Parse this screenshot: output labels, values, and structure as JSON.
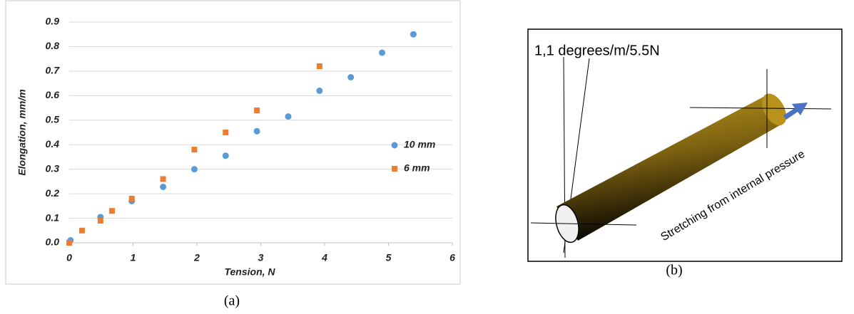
{
  "chart_data": {
    "type": "scatter",
    "x_label": "Tension, N",
    "y_label": "Elongation, mm/m",
    "xlim": [
      0,
      6
    ],
    "xticks": [
      0,
      1,
      2,
      3,
      4,
      5,
      6
    ],
    "ylim": [
      0,
      0.9
    ],
    "yticks": [
      {
        "value": 0,
        "label": "0.0"
      },
      0.1,
      0.2,
      0.3,
      0.4,
      0.5,
      0.6,
      0.7,
      0.8,
      0.9
    ],
    "grid": true,
    "legend": "right",
    "series": [
      {
        "name": "10 mm",
        "color": "#5b9bd5",
        "marker": "circle",
        "x": [
          0.02,
          0.49,
          0.98,
          1.47,
          1.96,
          2.45,
          2.94,
          3.43,
          3.92,
          4.41,
          4.9,
          5.39
        ],
        "values": [
          0.01,
          0.105,
          0.17,
          0.228,
          0.3,
          0.355,
          0.455,
          0.515,
          0.62,
          0.675,
          0.775,
          0.85
        ]
      },
      {
        "name": "6 mm",
        "color": "#ed7d31",
        "marker": "square",
        "x": [
          0,
          0.2,
          0.49,
          0.67,
          0.98,
          1.47,
          1.96,
          2.45,
          2.94,
          3.92
        ],
        "values": [
          0,
          0.05,
          0.09,
          0.13,
          0.18,
          0.26,
          0.38,
          0.45,
          0.54,
          0.72
        ]
      }
    ]
  },
  "captions": [
    "(a)",
    "(b)"
  ],
  "diagram": {
    "angle_label": "1,1 degrees/m/5.5N",
    "stretch_label": "Stretching from internal pressure"
  }
}
